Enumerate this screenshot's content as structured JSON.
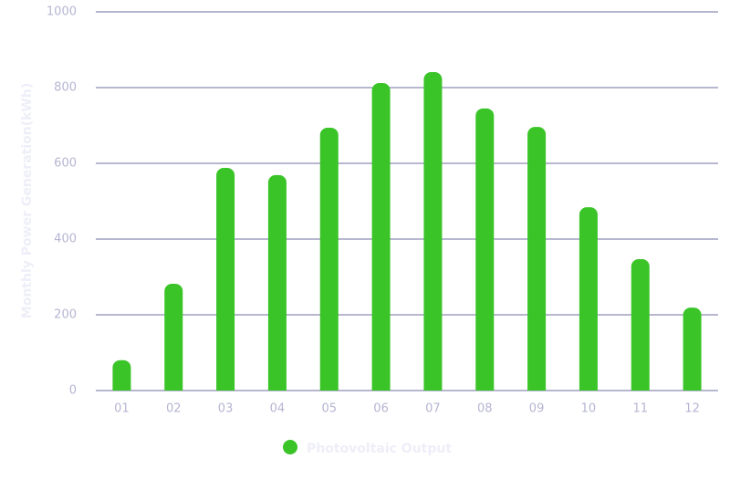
{
  "chart_data": {
    "type": "bar",
    "y_label": "Monthly Power Generation(kWh)",
    "categories": [
      "01",
      "02",
      "03",
      "04",
      "05",
      "06",
      "07",
      "08",
      "09",
      "10",
      "11",
      "12"
    ],
    "series": [
      {
        "name": "Photovoltaic Output",
        "color": "#3ac428",
        "values": [
          80,
          282,
          588,
          569,
          694,
          812,
          841,
          745,
          696,
          484,
          347,
          219
        ]
      }
    ],
    "ylim": [
      0,
      1000
    ],
    "yticks": [
      0,
      200,
      400,
      600,
      800,
      1000
    ],
    "grid": true
  }
}
